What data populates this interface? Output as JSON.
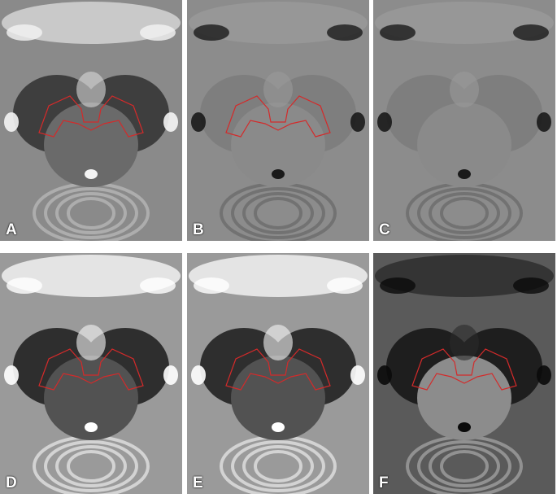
{
  "panels": [
    {
      "id": "A",
      "label": "A",
      "outline_color": "#d42a2a",
      "has_outline": true,
      "style": "bright"
    },
    {
      "id": "B",
      "label": "B",
      "outline_color": "#d42a2a",
      "has_outline": true,
      "style": "phase"
    },
    {
      "id": "C",
      "label": "C",
      "outline_color": "#d42a2a",
      "has_outline": false,
      "style": "phase"
    },
    {
      "id": "D",
      "label": "D",
      "outline_color": "#d42a2a",
      "has_outline": true,
      "style": "contrast"
    },
    {
      "id": "E",
      "label": "E",
      "outline_color": "#d42a2a",
      "has_outline": true,
      "style": "contrast"
    },
    {
      "id": "F",
      "label": "F",
      "outline_color": "#d42a2a",
      "has_outline": true,
      "style": "dark"
    }
  ]
}
